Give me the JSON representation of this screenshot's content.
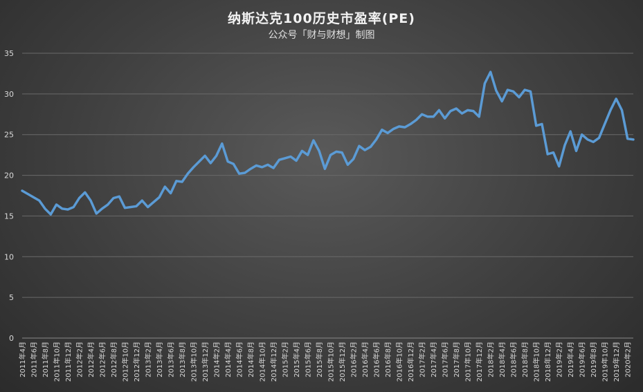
{
  "chart_data": {
    "type": "line",
    "title": "纳斯达克100历史市盈率(PE)",
    "subtitle": "公众号「财与财想」制图",
    "xlabel": "",
    "ylabel": "",
    "ylim": [
      0,
      35
    ],
    "yticks": [
      0,
      5,
      10,
      15,
      20,
      25,
      30,
      35
    ],
    "grid": true,
    "legend": "none",
    "line_color": "#5b9bd5",
    "x": [
      "2011年4月",
      "2011年5月",
      "2011年6月",
      "2011年7月",
      "2011年8月",
      "2011年9月",
      "2011年10月",
      "2011年11月",
      "2011年12月",
      "2012年1月",
      "2012年2月",
      "2012年3月",
      "2012年4月",
      "2012年5月",
      "2012年6月",
      "2012年7月",
      "2012年8月",
      "2012年9月",
      "2012年10月",
      "2012年11月",
      "2012年12月",
      "2013年1月",
      "2013年2月",
      "2013年3月",
      "2013年4月",
      "2013年5月",
      "2013年6月",
      "2013年7月",
      "2013年8月",
      "2013年9月",
      "2013年10月",
      "2013年11月",
      "2013年12月",
      "2014年1月",
      "2014年2月",
      "2014年3月",
      "2014年4月",
      "2014年5月",
      "2014年6月",
      "2014年7月",
      "2014年8月",
      "2014年9月",
      "2014年10月",
      "2014年11月",
      "2014年12月",
      "2015年1月",
      "2015年2月",
      "2015年3月",
      "2015年4月",
      "2015年5月",
      "2015年6月",
      "2015年7月",
      "2015年8月",
      "2015年9月",
      "2015年10月",
      "2015年11月",
      "2015年12月",
      "2016年1月",
      "2016年2月",
      "2016年3月",
      "2016年4月",
      "2016年5月",
      "2016年6月",
      "2016年7月",
      "2016年8月",
      "2016年9月",
      "2016年10月",
      "2016年11月",
      "2016年12月",
      "2017年1月",
      "2017年2月",
      "2017年3月",
      "2017年4月",
      "2017年5月",
      "2017年6月",
      "2017年7月",
      "2017年8月",
      "2017年9月",
      "2017年10月",
      "2017年11月",
      "2017年12月",
      "2018年1月",
      "2018年2月",
      "2018年3月",
      "2018年4月",
      "2018年5月",
      "2018年6月",
      "2018年7月",
      "2018年8月",
      "2018年9月",
      "2018年10月",
      "2018年11月",
      "2018年12月",
      "2019年1月",
      "2019年2月",
      "2019年3月",
      "2019年4月",
      "2019年5月",
      "2019年6月",
      "2019年7月",
      "2019年8月",
      "2019年9月",
      "2019年10月",
      "2019年11月",
      "2019年12月",
      "2020年1月",
      "2020年2月",
      "2020年2月"
    ],
    "x_tick_labels": [
      "2011年4月",
      "2011年6月",
      "2011年8月",
      "2011年10月",
      "2011年12月",
      "2012年2月",
      "2012年4月",
      "2012年6月",
      "2012年8月",
      "2012年10月",
      "2012年12月",
      "2013年2月",
      "2013年4月",
      "2013年6月",
      "2013年8月",
      "2013年10月",
      "2013年12月",
      "2014年2月",
      "2014年4月",
      "2014年6月",
      "2014年8月",
      "2014年10月",
      "2014年12月",
      "2015年2月",
      "2015年4月",
      "2015年6月",
      "2015年8月",
      "2015年10月",
      "2015年12月",
      "2016年2月",
      "2016年4月",
      "2016年6月",
      "2016年8月",
      "2016年10月",
      "2016年12月",
      "2017年2月",
      "2017年4月",
      "2017年6月",
      "2017年8月",
      "2017年10月",
      "2017年12月",
      "2018年2月",
      "2018年4月",
      "2018年6月",
      "2018年8月",
      "2018年10月",
      "2018年12月",
      "2019年2月",
      "2019年4月",
      "2019年6月",
      "2019年8月",
      "2019年10月",
      "2019年12月",
      "2020年2月"
    ],
    "series": [
      {
        "values": [
          18.1,
          17.7,
          17.3,
          16.9,
          15.9,
          15.2,
          16.4,
          15.9,
          15.8,
          16.1,
          17.2,
          17.9,
          16.9,
          15.3,
          15.9,
          16.4,
          17.2,
          17.4,
          16.0,
          16.1,
          16.2,
          16.9,
          16.1,
          16.7,
          17.3,
          18.6,
          17.8,
          19.3,
          19.2,
          20.2,
          21.0,
          21.7,
          22.4,
          21.5,
          22.4,
          23.9,
          21.7,
          21.4,
          20.2,
          20.3,
          20.8,
          21.2,
          21.0,
          21.3,
          20.9,
          21.9,
          22.1,
          22.3,
          21.8,
          23.0,
          22.5,
          24.3,
          23.0,
          20.8,
          22.5,
          22.9,
          22.8,
          21.3,
          22.0,
          23.6,
          23.1,
          23.5,
          24.4,
          25.6,
          25.2,
          25.7,
          26.0,
          25.9,
          26.3,
          26.8,
          27.5,
          27.2,
          27.2,
          28.0,
          27.0,
          27.9,
          28.2,
          27.6,
          28.0,
          27.9,
          27.2,
          31.3,
          32.7,
          30.4,
          29.1,
          30.5,
          30.3,
          29.6,
          30.5,
          30.3,
          26.1,
          26.3,
          22.6,
          22.8,
          21.1,
          23.7,
          25.4,
          23.0,
          25.0,
          24.4,
          24.1,
          24.6,
          26.3,
          28.0,
          29.4,
          28.0,
          24.5,
          24.4
        ]
      }
    ]
  }
}
